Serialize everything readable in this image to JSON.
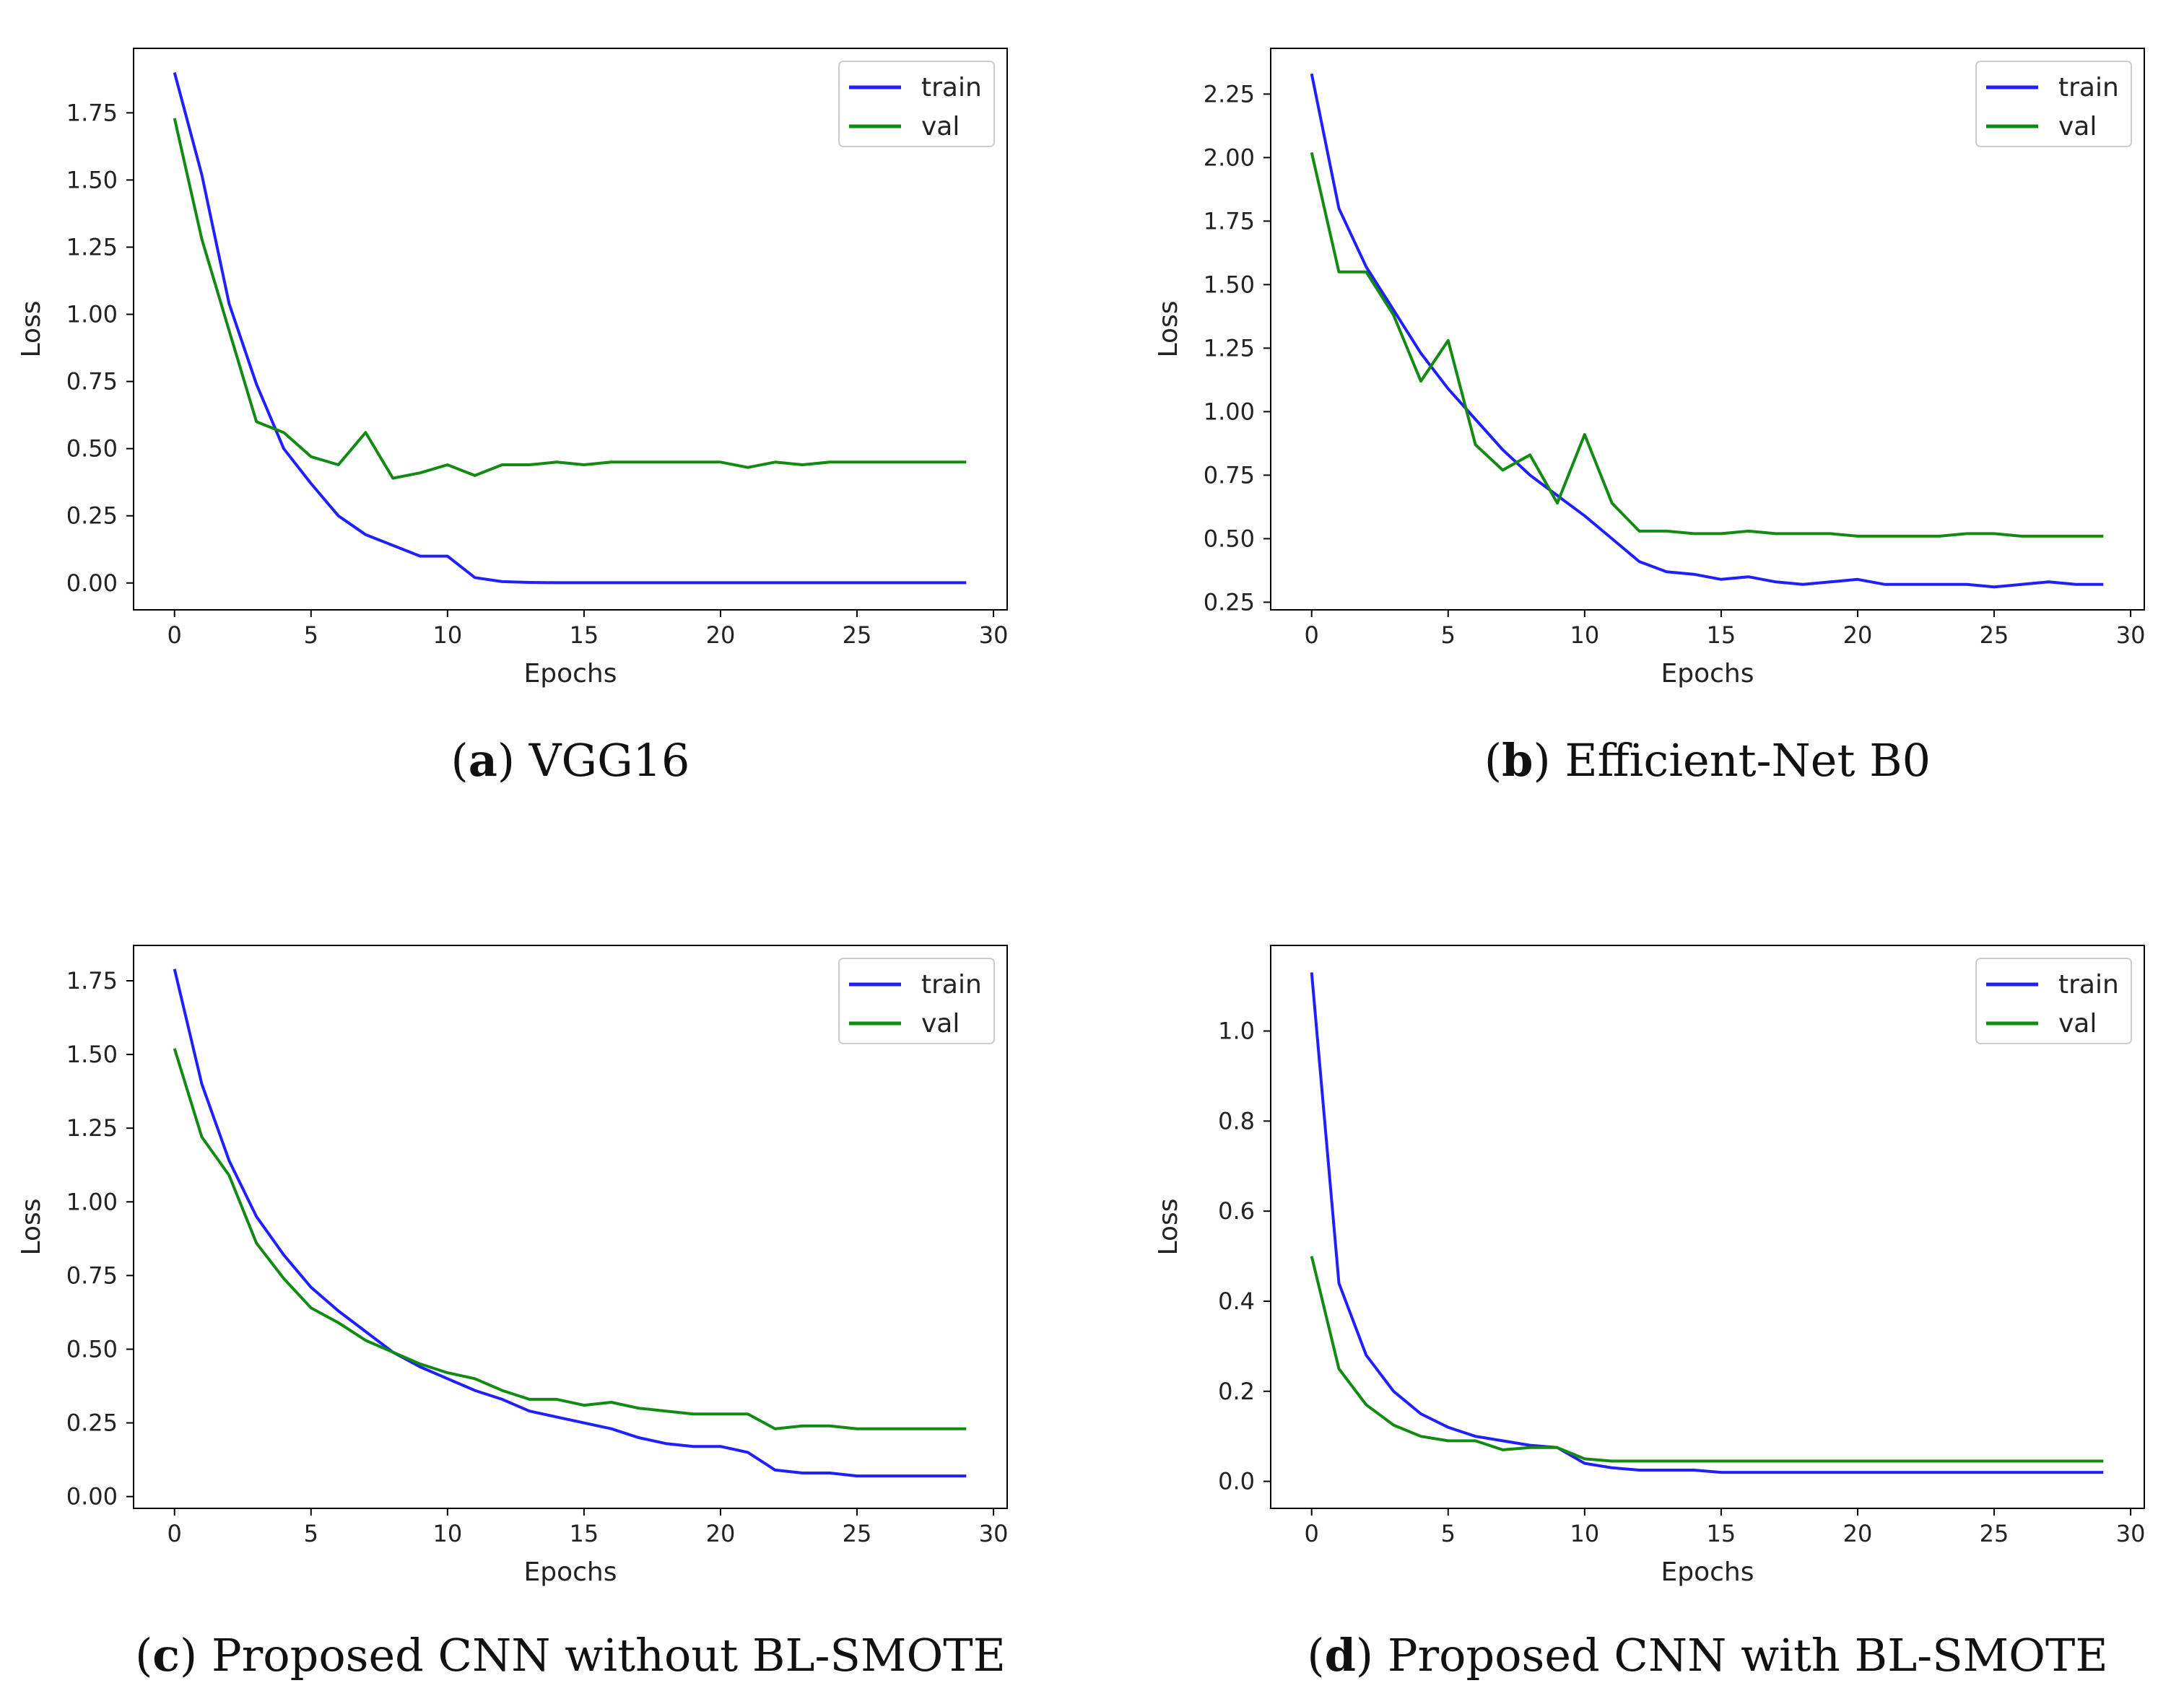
{
  "chart_data": [
    {
      "type": "line",
      "caption_letter": "a",
      "caption_text": "VGG16",
      "xlabel": "Epochs",
      "ylabel": "Loss",
      "xlim": [
        -1.5,
        30.5
      ],
      "ylim": [
        -0.1,
        1.99
      ],
      "xticks": [
        0,
        5,
        10,
        15,
        20,
        25,
        30
      ],
      "yticks": [
        0.0,
        0.25,
        0.5,
        0.75,
        1.0,
        1.25,
        1.5,
        1.75
      ],
      "ytick_labels": [
        "0.00",
        "0.25",
        "0.50",
        "0.75",
        "1.00",
        "1.25",
        "1.50",
        "1.75"
      ],
      "legend": "upper right",
      "x": [
        0,
        1,
        2,
        3,
        4,
        5,
        6,
        7,
        8,
        9,
        10,
        11,
        12,
        13,
        14,
        15,
        16,
        17,
        18,
        19,
        20,
        21,
        22,
        23,
        24,
        25,
        26,
        27,
        28,
        29
      ],
      "series": [
        {
          "name": "train",
          "color": "#1f1fff",
          "values": [
            1.9,
            1.52,
            1.04,
            0.74,
            0.5,
            0.37,
            0.25,
            0.18,
            0.14,
            0.1,
            0.1,
            0.02,
            0.005,
            0.002,
            0.001,
            0.001,
            0.001,
            0.001,
            0.001,
            0.001,
            0.001,
            0.001,
            0.001,
            0.001,
            0.001,
            0.001,
            0.001,
            0.001,
            0.001,
            0.001
          ]
        },
        {
          "name": "val",
          "color": "#138a13",
          "values": [
            1.73,
            1.28,
            0.94,
            0.6,
            0.56,
            0.47,
            0.44,
            0.56,
            0.39,
            0.41,
            0.44,
            0.4,
            0.44,
            0.44,
            0.45,
            0.44,
            0.45,
            0.45,
            0.45,
            0.45,
            0.45,
            0.43,
            0.45,
            0.44,
            0.45,
            0.45,
            0.45,
            0.45,
            0.45,
            0.45
          ]
        }
      ]
    },
    {
      "type": "line",
      "caption_letter": "b",
      "caption_text": "Efficient-Net B0",
      "xlabel": "Epochs",
      "ylabel": "Loss",
      "xlim": [
        -1.5,
        30.5
      ],
      "ylim": [
        0.22,
        2.43
      ],
      "xticks": [
        0,
        5,
        10,
        15,
        20,
        25,
        30
      ],
      "yticks": [
        0.25,
        0.5,
        0.75,
        1.0,
        1.25,
        1.5,
        1.75,
        2.0,
        2.25
      ],
      "ytick_labels": [
        "0.25",
        "0.50",
        "0.75",
        "1.00",
        "1.25",
        "1.50",
        "1.75",
        "2.00",
        "2.25"
      ],
      "legend": "upper right",
      "x": [
        0,
        1,
        2,
        3,
        4,
        5,
        6,
        7,
        8,
        9,
        10,
        11,
        12,
        13,
        14,
        15,
        16,
        17,
        18,
        19,
        20,
        21,
        22,
        23,
        24,
        25,
        26,
        27,
        28,
        29
      ],
      "series": [
        {
          "name": "train",
          "color": "#1f1fff",
          "values": [
            2.33,
            1.8,
            1.57,
            1.4,
            1.23,
            1.09,
            0.97,
            0.85,
            0.75,
            0.67,
            0.59,
            0.5,
            0.41,
            0.37,
            0.36,
            0.34,
            0.35,
            0.33,
            0.32,
            0.33,
            0.34,
            0.32,
            0.32,
            0.32,
            0.32,
            0.31,
            0.32,
            0.33,
            0.32,
            0.32
          ]
        },
        {
          "name": "val",
          "color": "#138a13",
          "values": [
            2.02,
            1.55,
            1.55,
            1.38,
            1.12,
            1.28,
            0.87,
            0.77,
            0.83,
            0.64,
            0.91,
            0.64,
            0.53,
            0.53,
            0.52,
            0.52,
            0.53,
            0.52,
            0.52,
            0.52,
            0.51,
            0.51,
            0.51,
            0.51,
            0.52,
            0.52,
            0.51,
            0.51,
            0.51,
            0.51
          ]
        }
      ]
    },
    {
      "type": "line",
      "caption_letter": "c",
      "caption_text": "Proposed CNN without BL-SMOTE",
      "xlabel": "Epochs",
      "ylabel": "Loss",
      "xlim": [
        -1.5,
        30.5
      ],
      "ylim": [
        -0.04,
        1.87
      ],
      "xticks": [
        0,
        5,
        10,
        15,
        20,
        25,
        30
      ],
      "yticks": [
        0.0,
        0.25,
        0.5,
        0.75,
        1.0,
        1.25,
        1.5,
        1.75
      ],
      "ytick_labels": [
        "0.00",
        "0.25",
        "0.50",
        "0.75",
        "1.00",
        "1.25",
        "1.50",
        "1.75"
      ],
      "legend": "upper right",
      "x": [
        0,
        1,
        2,
        3,
        4,
        5,
        6,
        7,
        8,
        9,
        10,
        11,
        12,
        13,
        14,
        15,
        16,
        17,
        18,
        19,
        20,
        21,
        22,
        23,
        24,
        25,
        26,
        27,
        28,
        29
      ],
      "series": [
        {
          "name": "train",
          "color": "#1f1fff",
          "values": [
            1.79,
            1.4,
            1.14,
            0.95,
            0.82,
            0.71,
            0.63,
            0.56,
            0.49,
            0.44,
            0.4,
            0.36,
            0.33,
            0.29,
            0.27,
            0.25,
            0.23,
            0.2,
            0.18,
            0.17,
            0.17,
            0.15,
            0.09,
            0.08,
            0.08,
            0.07,
            0.07,
            0.07,
            0.07,
            0.07
          ]
        },
        {
          "name": "val",
          "color": "#138a13",
          "values": [
            1.52,
            1.22,
            1.09,
            0.86,
            0.74,
            0.64,
            0.59,
            0.53,
            0.49,
            0.45,
            0.42,
            0.4,
            0.36,
            0.33,
            0.33,
            0.31,
            0.32,
            0.3,
            0.29,
            0.28,
            0.28,
            0.28,
            0.23,
            0.24,
            0.24,
            0.23,
            0.23,
            0.23,
            0.23,
            0.23
          ]
        }
      ]
    },
    {
      "type": "line",
      "caption_letter": "d",
      "caption_text": "Proposed CNN with BL-SMOTE",
      "xlabel": "Epochs",
      "ylabel": "Loss",
      "xlim": [
        -1.5,
        30.5
      ],
      "ylim": [
        -0.06,
        1.19
      ],
      "xticks": [
        0,
        5,
        10,
        15,
        20,
        25,
        30
      ],
      "yticks": [
        0.0,
        0.2,
        0.4,
        0.6,
        0.8,
        1.0
      ],
      "ytick_labels": [
        "0.0",
        "0.2",
        "0.4",
        "0.6",
        "0.8",
        "1.0"
      ],
      "legend": "upper right",
      "x": [
        0,
        1,
        2,
        3,
        4,
        5,
        6,
        7,
        8,
        9,
        10,
        11,
        12,
        13,
        14,
        15,
        16,
        17,
        18,
        19,
        20,
        21,
        22,
        23,
        24,
        25,
        26,
        27,
        28,
        29
      ],
      "series": [
        {
          "name": "train",
          "color": "#1f1fff",
          "values": [
            1.13,
            0.44,
            0.28,
            0.2,
            0.15,
            0.12,
            0.1,
            0.09,
            0.08,
            0.075,
            0.04,
            0.03,
            0.025,
            0.025,
            0.025,
            0.02,
            0.02,
            0.02,
            0.02,
            0.02,
            0.02,
            0.02,
            0.02,
            0.02,
            0.02,
            0.02,
            0.02,
            0.02,
            0.02,
            0.02
          ]
        },
        {
          "name": "val",
          "color": "#138a13",
          "values": [
            0.5,
            0.25,
            0.17,
            0.125,
            0.1,
            0.09,
            0.09,
            0.07,
            0.075,
            0.075,
            0.05,
            0.045,
            0.045,
            0.045,
            0.045,
            0.045,
            0.045,
            0.045,
            0.045,
            0.045,
            0.045,
            0.045,
            0.045,
            0.045,
            0.045,
            0.045,
            0.045,
            0.045,
            0.045,
            0.045
          ]
        }
      ]
    }
  ]
}
